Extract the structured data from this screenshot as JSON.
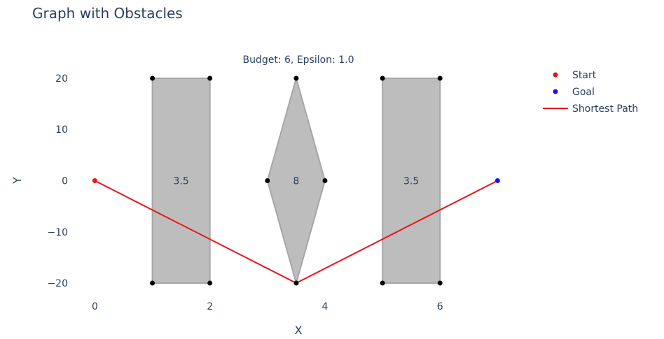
{
  "chart_data": {
    "type": "scatter",
    "title": "Graph with Obstacles",
    "annotation": "Budget: 6, Epsilon: 1.0",
    "xlabel": "X",
    "ylabel": "Y",
    "xlim": [
      -0.2,
      7.3
    ],
    "ylim": [
      -23,
      23
    ],
    "xticks": [
      0,
      2,
      4,
      6
    ],
    "yticks": [
      20,
      10,
      0,
      -10,
      -20
    ],
    "grid": false,
    "legend_position": "top-right",
    "obstacles": [
      {
        "label": "3.5",
        "label_at": [
          1.5,
          0
        ],
        "points": [
          [
            1,
            20
          ],
          [
            2,
            20
          ],
          [
            2,
            -20
          ],
          [
            1,
            -20
          ]
        ]
      },
      {
        "label": "8",
        "label_at": [
          3.5,
          0
        ],
        "points": [
          [
            3.5,
            20
          ],
          [
            4,
            0
          ],
          [
            3.5,
            -20
          ],
          [
            3,
            0
          ]
        ]
      },
      {
        "label": "3.5",
        "label_at": [
          5.5,
          0
        ],
        "points": [
          [
            5,
            20
          ],
          [
            6,
            20
          ],
          [
            6,
            -20
          ],
          [
            5,
            -20
          ]
        ]
      }
    ],
    "vertex_color": "#000000",
    "obstacle_fill": "#bdbdbd",
    "obstacle_stroke": "#a6a6a6",
    "series": [
      {
        "name": "Start",
        "kind": "marker",
        "color": "#e8141b",
        "points": [
          [
            0,
            0
          ]
        ]
      },
      {
        "name": "Goal",
        "kind": "marker",
        "color": "#1414e8",
        "points": [
          [
            7,
            0
          ]
        ]
      },
      {
        "name": "Shortest Path",
        "kind": "line",
        "color": "#e8141b",
        "points": [
          [
            0,
            0
          ],
          [
            3.5,
            -20
          ],
          [
            7,
            0
          ]
        ]
      }
    ]
  }
}
